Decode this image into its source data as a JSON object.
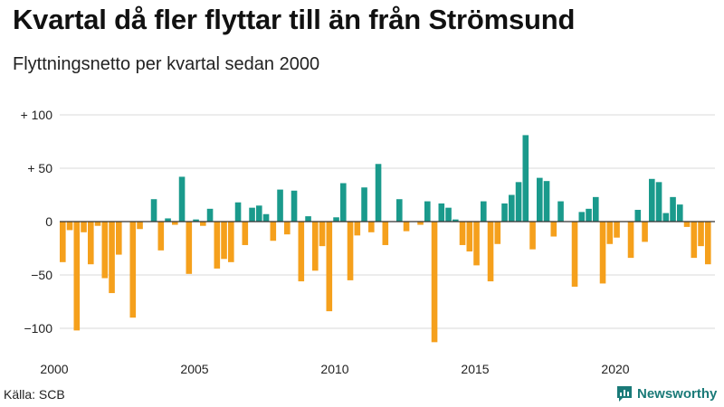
{
  "title": "Kvartal då fler flyttar till än från Strömsund",
  "subtitle": "Flyttningsnetto per kvartal sedan 2000",
  "source": "Källa: SCB",
  "brand": "Newsworthy",
  "colors": {
    "positive": "#1a9a8c",
    "negative": "#f5a01c",
    "grid": "#d8d8d8",
    "zero": "#333333",
    "brand": "#1a7a78"
  },
  "icons": {
    "brand": "chart-bubble-icon"
  },
  "chart_data": {
    "type": "bar",
    "title": "Kvartal då fler flyttar till än från Strömsund",
    "subtitle": "Flyttningsnetto per kvartal sedan 2000",
    "ylim": [
      -115,
      110
    ],
    "y_ticks": [
      {
        "value": 100,
        "label": "+ 100"
      },
      {
        "value": 50,
        "label": "+  50"
      },
      {
        "value": 0,
        "label": "0"
      },
      {
        "value": -50,
        "label": "−50"
      },
      {
        "value": -100,
        "label": "−100"
      }
    ],
    "x_ticks": [
      "2000",
      "2005",
      "2010",
      "2015",
      "2020"
    ],
    "grid": true,
    "start_year": 2000,
    "values": [
      -38,
      -8,
      -102,
      -10,
      -40,
      -4,
      -53,
      -67,
      -31,
      0,
      -90,
      -7,
      0,
      21,
      -27,
      3,
      -3,
      42,
      -49,
      2,
      -4,
      12,
      -44,
      -35,
      -38,
      18,
      -22,
      13,
      15,
      7,
      -18,
      30,
      -12,
      29,
      -56,
      5,
      -46,
      -23,
      -84,
      4,
      36,
      -55,
      -13,
      32,
      -10,
      54,
      -22,
      0,
      21,
      -9,
      0,
      -3,
      19,
      -113,
      17,
      13,
      2,
      -22,
      -28,
      -41,
      19,
      -56,
      -21,
      17,
      25,
      37,
      81,
      -26,
      41,
      38,
      -14,
      19,
      0,
      -61,
      9,
      12,
      23,
      -58,
      -21,
      -15,
      0,
      -34,
      11,
      -19,
      40,
      37,
      8,
      23,
      16,
      -5,
      -34,
      -23,
      -40
    ]
  }
}
